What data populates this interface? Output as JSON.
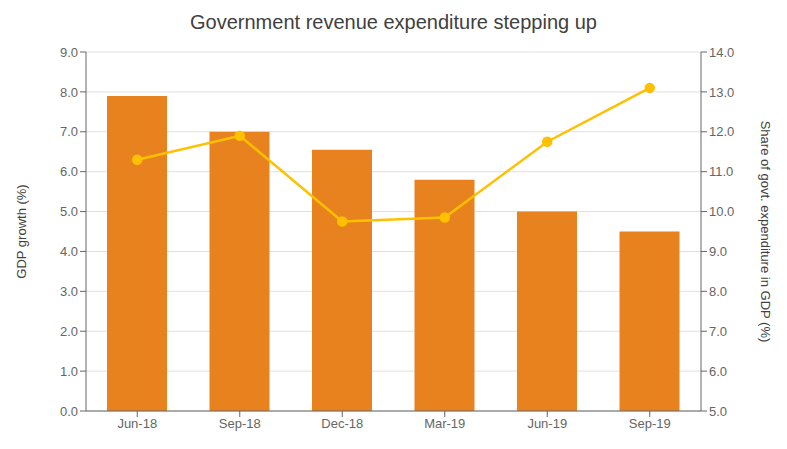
{
  "chart_data": {
    "type": "bar",
    "title": "Government revenue expenditure stepping up",
    "categories": [
      "Jun-18",
      "Sep-18",
      "Dec-18",
      "Mar-19",
      "Jun-19",
      "Sep-19"
    ],
    "series": [
      {
        "type": "bar",
        "color": "#E8821E",
        "values": [
          7.9,
          7.0,
          6.55,
          5.8,
          5.0,
          4.5
        ]
      },
      {
        "type": "line",
        "axis": "y2",
        "color": "#FFC000",
        "marker": "circle",
        "values": [
          11.3,
          11.9,
          9.75,
          9.85,
          11.75,
          13.1
        ]
      }
    ],
    "ylabel": "GDP growth (%)",
    "y2label": "Share of govt. expenditure in GDP (%)",
    "ylim": [
      0.0,
      9.0
    ],
    "yticks": [
      {
        "value": 0,
        "label": "0.0"
      },
      {
        "value": 1,
        "label": "1.0"
      },
      {
        "value": 2,
        "label": "2.0"
      },
      {
        "value": 3,
        "label": "3.0"
      },
      {
        "value": 4,
        "label": "4.0"
      },
      {
        "value": 5,
        "label": "5.0"
      },
      {
        "value": 6,
        "label": "6.0"
      },
      {
        "value": 7,
        "label": "7.0"
      },
      {
        "value": 8,
        "label": "8.0"
      },
      {
        "value": 9,
        "label": "9.0"
      }
    ],
    "y2lim": [
      5.0,
      14.0
    ],
    "y2ticks": [
      {
        "value": 5,
        "label": "5.0"
      },
      {
        "value": 6,
        "label": "6.0"
      },
      {
        "value": 7,
        "label": "7.0"
      },
      {
        "value": 8,
        "label": "8.0"
      },
      {
        "value": 9,
        "label": "9.0"
      },
      {
        "value": 10,
        "label": "10.0"
      },
      {
        "value": 11,
        "label": "11.0"
      },
      {
        "value": 12,
        "label": "12.0"
      },
      {
        "value": 13,
        "label": "13.0"
      },
      {
        "value": 14,
        "label": "14.0"
      }
    ],
    "grid": true
  }
}
